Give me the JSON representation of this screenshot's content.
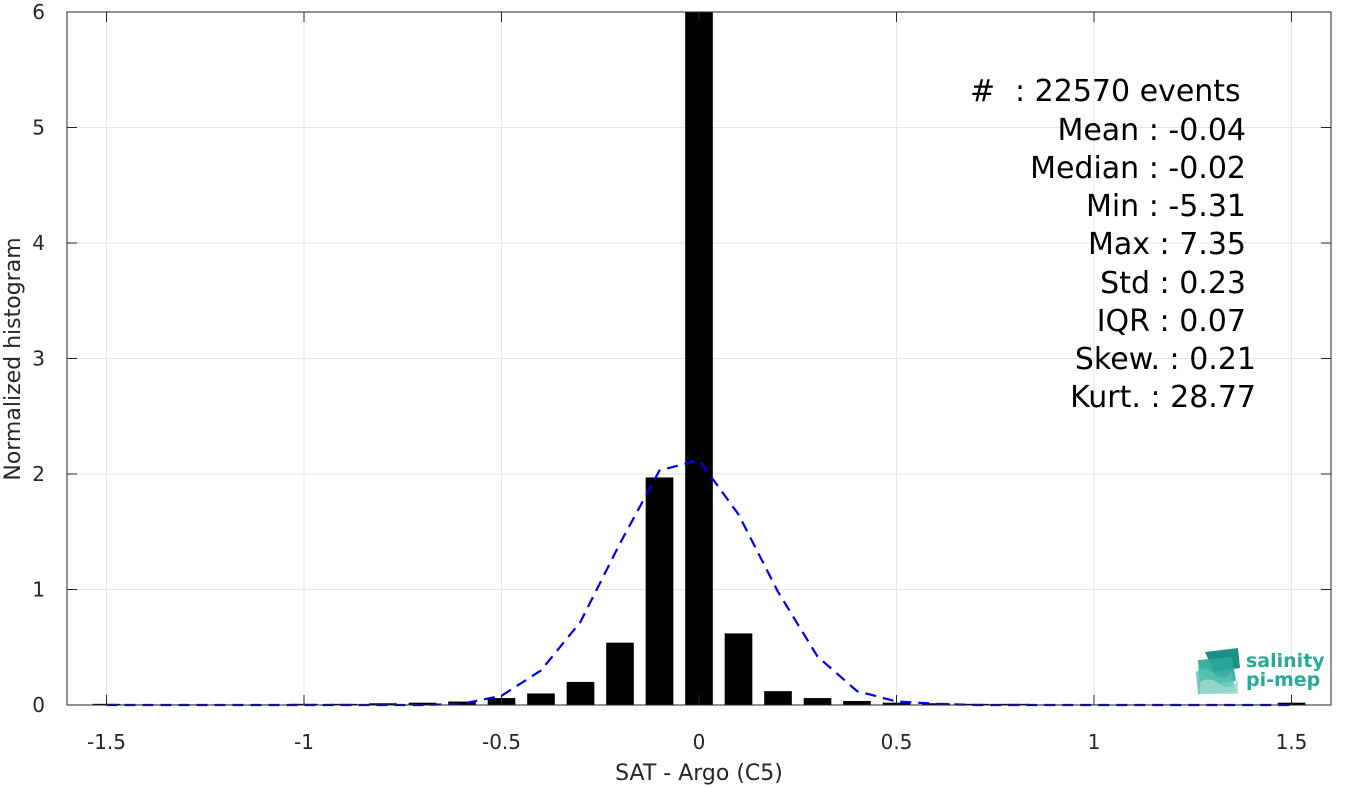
{
  "chart_data": {
    "type": "bar",
    "xlabel": "SAT - Argo (C5)",
    "ylabel": "Normalized histogram",
    "xlim": [
      -1.6,
      1.6
    ],
    "ylim": [
      0,
      6
    ],
    "xticks": [
      -1.5,
      -1,
      -0.5,
      0,
      0.5,
      1,
      1.5
    ],
    "xtick_labels": [
      "-1.5",
      "-1",
      "-0.5",
      "0",
      "0.5",
      "1",
      "1.5"
    ],
    "yticks": [
      0,
      1,
      2,
      3,
      4,
      5,
      6
    ],
    "ytick_labels": [
      "0",
      "1",
      "2",
      "3",
      "4",
      "5",
      "6"
    ],
    "grid": true,
    "bar_color": "#000000",
    "bar_width": 0.07,
    "bars": {
      "x": [
        -1.5,
        -1.4,
        -1.3,
        -1.2,
        -1.1,
        -1.0,
        -0.9,
        -0.8,
        -0.7,
        -0.6,
        -0.5,
        -0.4,
        -0.3,
        -0.2,
        -0.1,
        0.0,
        0.1,
        0.2,
        0.3,
        0.4,
        0.5,
        0.6,
        0.7,
        0.8,
        0.9,
        1.0,
        1.1,
        1.2,
        1.3,
        1.4,
        1.5
      ],
      "values": [
        0.01,
        0.005,
        0.005,
        0.005,
        0.005,
        0.01,
        0.01,
        0.015,
        0.02,
        0.03,
        0.06,
        0.1,
        0.2,
        0.54,
        1.97,
        6.0,
        0.62,
        0.12,
        0.06,
        0.035,
        0.02,
        0.015,
        0.01,
        0.01,
        0.005,
        0.005,
        0.005,
        0.005,
        0.005,
        0.005,
        0.02
      ]
    },
    "fit_curve": {
      "color": "#0000e6",
      "style": "dashed",
      "x": [
        -1.5,
        -1.4,
        -1.3,
        -1.2,
        -1.1,
        -1.0,
        -0.9,
        -0.8,
        -0.7,
        -0.6,
        -0.5,
        -0.4,
        -0.3,
        -0.2,
        -0.1,
        0.0,
        0.1,
        0.2,
        0.3,
        0.4,
        0.5,
        0.6,
        0.7,
        0.8,
        0.9,
        1.0,
        1.1,
        1.2,
        1.3,
        1.4,
        1.5
      ],
      "y": [
        0,
        0,
        0,
        0,
        0,
        0,
        0,
        0,
        0,
        0.01,
        0.08,
        0.3,
        0.72,
        1.4,
        2.03,
        2.12,
        1.65,
        0.98,
        0.42,
        0.12,
        0.03,
        0.01,
        0,
        0,
        0,
        0,
        0,
        0,
        0,
        0,
        0
      ]
    }
  },
  "stats": {
    "count_label": "#",
    "count_value": ": 22570 events",
    "lines": [
      "Mean : -0.04",
      "Median : -0.02",
      "Min : -5.31",
      "Max : 7.35",
      "Std : 0.23",
      "IQR : 0.07",
      "Skew. : 0.21",
      "Kurt. : 28.77"
    ]
  },
  "logo": {
    "line1": "salinity",
    "line2": "pi-mep",
    "color": "#2aa89a"
  }
}
